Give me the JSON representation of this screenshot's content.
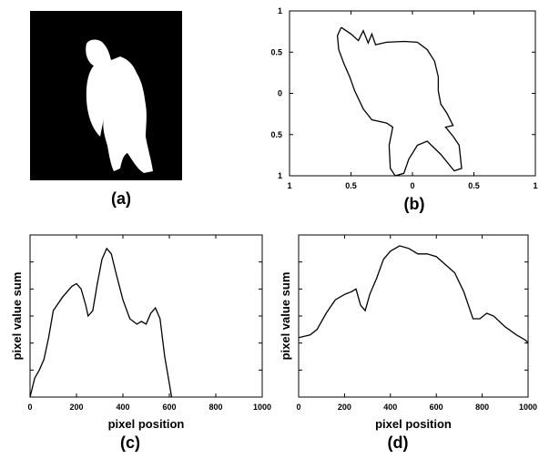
{
  "figure": {
    "image_caption": "(a)"
  },
  "chart_data": [
    {
      "type": "line",
      "caption": "(b)",
      "x": [
        -0.58,
        -0.5,
        -0.44,
        -0.4,
        -0.36,
        -0.33,
        -0.3,
        -0.21,
        -0.07,
        0.04,
        0.12,
        0.18,
        0.21,
        0.21,
        0.23,
        0.28,
        0.33,
        0.27,
        0.33,
        0.38,
        0.4,
        0.34,
        0.23,
        0.12,
        0.04,
        -0.03,
        -0.07,
        -0.14,
        -0.18,
        -0.19,
        -0.16,
        -0.21,
        -0.33,
        -0.4,
        -0.47,
        -0.51,
        -0.56,
        -0.6,
        -0.61,
        -0.58
      ],
      "series": [
        {
          "color": "#000000",
          "values": [
            -0.8,
            -0.72,
            -0.64,
            -0.76,
            -0.61,
            -0.72,
            -0.59,
            -0.62,
            -0.63,
            -0.62,
            -0.53,
            -0.39,
            -0.2,
            -0.03,
            0.13,
            0.24,
            0.39,
            0.41,
            0.52,
            0.63,
            0.91,
            0.94,
            0.74,
            0.58,
            0.63,
            0.8,
            0.97,
            1.0,
            0.91,
            0.63,
            0.41,
            0.36,
            0.32,
            0.19,
            -0.03,
            -0.2,
            -0.37,
            -0.53,
            -0.7,
            -0.8
          ]
        }
      ],
      "xlim": [
        -1,
        1
      ],
      "ylim": [
        1,
        -1
      ],
      "xticks": [
        {
          "value": -1,
          "label": "1"
        },
        {
          "value": -0.5,
          "label": "0.5"
        },
        0,
        0.5,
        1
      ],
      "yticks": [
        {
          "value": -1,
          "label": "1"
        },
        {
          "value": -0.5,
          "label": "0.5"
        },
        0,
        0.5,
        1
      ]
    },
    {
      "type": "line",
      "caption": "(c)",
      "xlabel": "pixel position",
      "ylabel": "pixel value sum",
      "x": [
        0,
        20,
        40,
        60,
        80,
        100,
        140,
        180,
        200,
        220,
        240,
        250,
        270,
        290,
        310,
        330,
        350,
        370,
        400,
        430,
        460,
        480,
        500,
        520,
        540,
        560,
        580,
        600,
        610
      ],
      "series": [
        {
          "color": "#000000",
          "values": [
            0,
            0.7,
            1.0,
            1.4,
            2.2,
            3.2,
            3.7,
            4.1,
            4.2,
            4.0,
            3.4,
            3.0,
            3.2,
            4.2,
            5.1,
            5.5,
            5.3,
            4.6,
            3.6,
            2.9,
            2.7,
            2.8,
            2.7,
            3.1,
            3.3,
            2.9,
            1.5,
            0.5,
            0
          ]
        }
      ],
      "xlim": [
        0,
        1000
      ],
      "ylim": [
        0,
        6
      ],
      "xticks": [
        0,
        200,
        400,
        600,
        800,
        1000
      ],
      "yticks": [
        1,
        2,
        3,
        4,
        5
      ]
    },
    {
      "type": "line",
      "caption": "(d)",
      "xlabel": "pixel position",
      "ylabel": "pixel value sum",
      "x": [
        0,
        50,
        80,
        120,
        160,
        200,
        230,
        250,
        270,
        290,
        310,
        340,
        370,
        400,
        440,
        480,
        520,
        560,
        600,
        640,
        680,
        720,
        760,
        790,
        820,
        850,
        900,
        950,
        990,
        1000
      ],
      "series": [
        {
          "color": "#000000",
          "values": [
            2.2,
            2.3,
            2.5,
            3.1,
            3.6,
            3.8,
            3.9,
            4.0,
            3.4,
            3.2,
            3.8,
            4.4,
            5.1,
            5.4,
            5.6,
            5.5,
            5.3,
            5.3,
            5.2,
            4.9,
            4.6,
            3.9,
            2.9,
            2.9,
            3.1,
            3.0,
            2.6,
            2.3,
            2.1,
            2.0
          ]
        }
      ],
      "xlim": [
        0,
        1000
      ],
      "ylim": [
        0,
        6
      ],
      "xticks": [
        0,
        200,
        400,
        600,
        800,
        1000
      ],
      "yticks": [
        1,
        2,
        3,
        4,
        5
      ]
    }
  ]
}
